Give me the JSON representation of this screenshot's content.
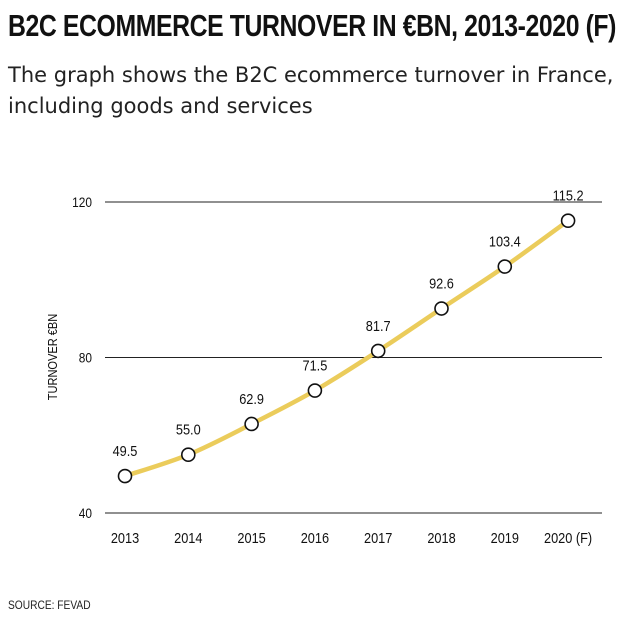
{
  "title": "B2C ECOMMERCE TURNOVER IN €BN, 2013-2020 (F)",
  "subtitle": "The graph shows the B2C ecommerce turnover in France, including goods and services",
  "source": "SOURCE: FEVAD",
  "colors": {
    "line": "#ebcc5b",
    "marker_fill": "#ffffff",
    "marker_stroke": "#111111",
    "grid": "#222222"
  },
  "chart_data": {
    "type": "line",
    "categories": [
      "2013",
      "2014",
      "2015",
      "2016",
      "2017",
      "2018",
      "2019",
      "2020 (F)"
    ],
    "values": [
      49.5,
      55.0,
      62.9,
      71.5,
      81.7,
      92.6,
      103.4,
      115.2
    ],
    "data_labels": [
      "49.5",
      "55.0",
      "62.9",
      "71.5",
      "81.7",
      "92.6",
      "103.4",
      "115.2"
    ],
    "ylabel": "TURNOVER €BN",
    "xlabel": "",
    "ylim": [
      40,
      120
    ],
    "yticks": [
      "40",
      "80",
      "120"
    ],
    "grid": true,
    "markers": "open-circle"
  }
}
